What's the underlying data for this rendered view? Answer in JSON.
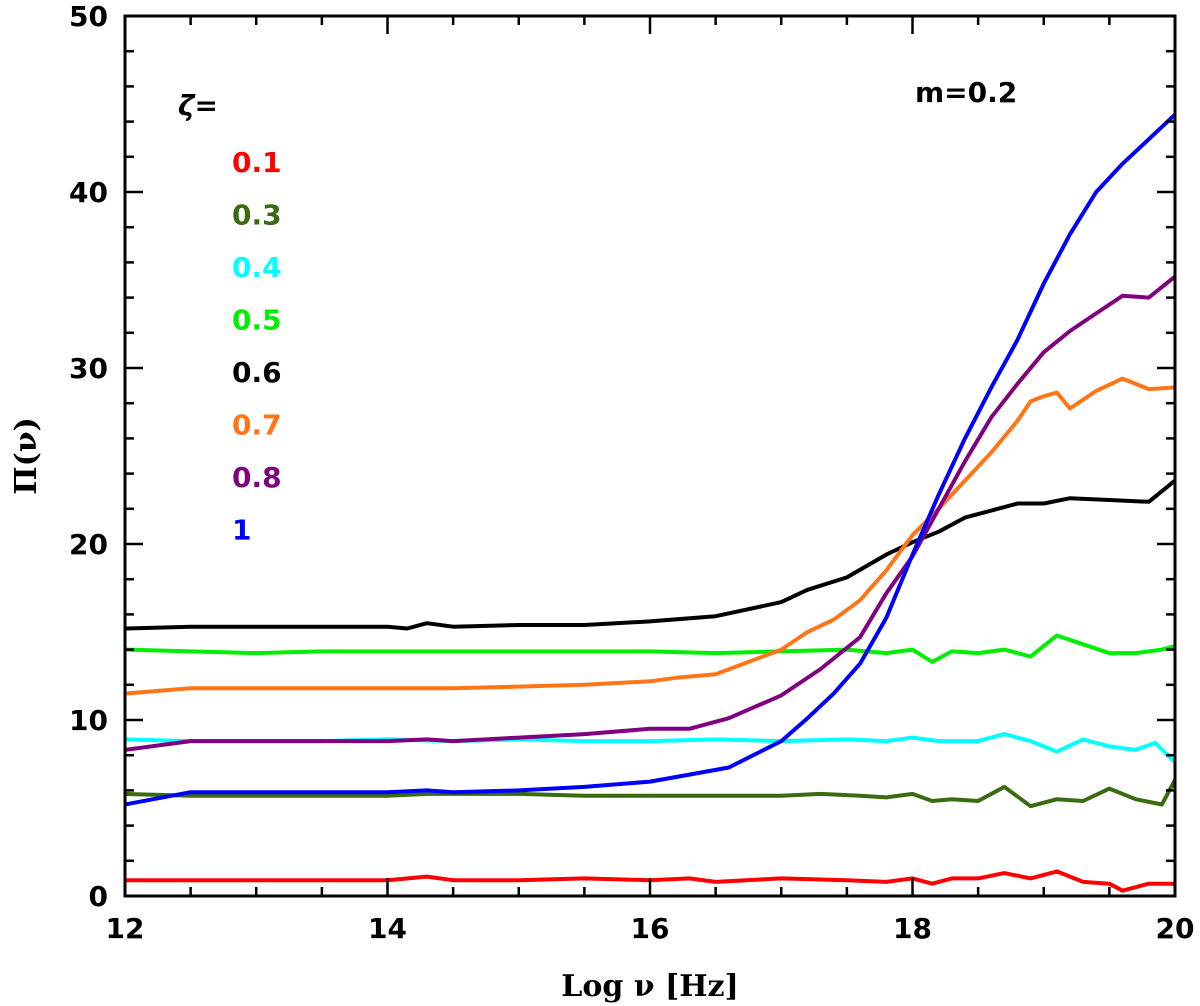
{
  "chart_data": {
    "type": "line",
    "xlabel": "Log ν [Hz]",
    "ylabel": "Π(ν)",
    "xlim": [
      12,
      20
    ],
    "ylim": [
      0,
      50
    ],
    "xticks": [
      12,
      14,
      16,
      18,
      20
    ],
    "yticks": [
      0,
      10,
      20,
      30,
      40,
      50
    ],
    "grid": false,
    "annotation": "m=0.2",
    "legend_title": "ζ=",
    "legend_position": "top-left",
    "series": [
      {
        "name": "0.1",
        "color": "#ff0000",
        "x": [
          12.0,
          12.5,
          13.0,
          13.5,
          14.0,
          14.3,
          14.5,
          15.0,
          15.5,
          16.0,
          16.3,
          16.5,
          17.0,
          17.5,
          17.8,
          18.0,
          18.15,
          18.3,
          18.5,
          18.7,
          18.9,
          19.1,
          19.3,
          19.5,
          19.6,
          19.8,
          20.0
        ],
        "y": [
          0.9,
          0.9,
          0.9,
          0.9,
          0.9,
          1.1,
          0.9,
          0.9,
          1.0,
          0.9,
          1.0,
          0.8,
          1.0,
          0.9,
          0.8,
          1.0,
          0.7,
          1.0,
          1.0,
          1.3,
          1.0,
          1.4,
          0.8,
          0.7,
          0.3,
          0.7,
          0.7
        ]
      },
      {
        "name": "0.3",
        "color": "#3a6b0f",
        "x": [
          12.0,
          12.5,
          13.0,
          13.5,
          14.0,
          14.3,
          14.5,
          15.0,
          15.5,
          16.0,
          16.5,
          17.0,
          17.3,
          17.6,
          17.8,
          18.0,
          18.15,
          18.3,
          18.5,
          18.7,
          18.9,
          19.1,
          19.3,
          19.5,
          19.7,
          19.9,
          20.0
        ],
        "y": [
          5.8,
          5.7,
          5.7,
          5.7,
          5.7,
          5.8,
          5.8,
          5.8,
          5.7,
          5.7,
          5.7,
          5.7,
          5.8,
          5.7,
          5.6,
          5.8,
          5.4,
          5.5,
          5.4,
          6.2,
          5.1,
          5.5,
          5.4,
          6.1,
          5.5,
          5.2,
          6.6
        ]
      },
      {
        "name": "0.4",
        "color": "#00ffff",
        "x": [
          12.0,
          12.5,
          13.0,
          13.5,
          14.0,
          14.5,
          15.0,
          15.5,
          16.0,
          16.5,
          17.0,
          17.5,
          17.8,
          18.0,
          18.2,
          18.5,
          18.7,
          18.9,
          19.1,
          19.3,
          19.5,
          19.7,
          19.85,
          20.0
        ],
        "y": [
          8.9,
          8.8,
          8.8,
          8.8,
          8.9,
          8.8,
          8.9,
          8.8,
          8.8,
          8.9,
          8.8,
          8.9,
          8.8,
          9.0,
          8.8,
          8.8,
          9.2,
          8.8,
          8.2,
          8.9,
          8.5,
          8.3,
          8.7,
          7.6
        ]
      },
      {
        "name": "0.5",
        "color": "#00ee00",
        "x": [
          12.0,
          12.5,
          13.0,
          13.5,
          14.0,
          14.5,
          15.0,
          15.5,
          16.0,
          16.5,
          17.0,
          17.5,
          17.8,
          18.0,
          18.15,
          18.3,
          18.5,
          18.7,
          18.9,
          19.1,
          19.3,
          19.5,
          19.7,
          19.9,
          20.0
        ],
        "y": [
          14.0,
          13.9,
          13.8,
          13.9,
          13.9,
          13.9,
          13.9,
          13.9,
          13.9,
          13.8,
          13.9,
          14.0,
          13.8,
          14.0,
          13.3,
          13.9,
          13.8,
          14.0,
          13.6,
          14.8,
          14.3,
          13.8,
          13.8,
          14.0,
          14.2
        ]
      },
      {
        "name": "0.6",
        "color": "#000000",
        "x": [
          12.0,
          12.5,
          13.0,
          13.5,
          14.0,
          14.15,
          14.3,
          14.5,
          15.0,
          15.5,
          16.0,
          16.5,
          17.0,
          17.2,
          17.5,
          17.8,
          18.0,
          18.2,
          18.4,
          18.6,
          18.8,
          19.0,
          19.2,
          19.5,
          19.8,
          20.0
        ],
        "y": [
          15.2,
          15.3,
          15.3,
          15.3,
          15.3,
          15.2,
          15.5,
          15.3,
          15.4,
          15.4,
          15.6,
          15.9,
          16.7,
          17.4,
          18.1,
          19.4,
          20.1,
          20.7,
          21.5,
          21.9,
          22.3,
          22.3,
          22.6,
          22.5,
          22.4,
          23.6
        ]
      },
      {
        "name": "0.7",
        "color": "#ff7518",
        "x": [
          12.0,
          12.5,
          13.0,
          13.5,
          14.0,
          14.5,
          15.0,
          15.5,
          16.0,
          16.2,
          16.5,
          17.0,
          17.2,
          17.4,
          17.6,
          17.8,
          18.0,
          18.2,
          18.4,
          18.6,
          18.8,
          18.9,
          19.0,
          19.1,
          19.2,
          19.4,
          19.6,
          19.8,
          20.0
        ],
        "y": [
          11.5,
          11.8,
          11.8,
          11.8,
          11.8,
          11.8,
          11.9,
          12.0,
          12.2,
          12.4,
          12.6,
          14.0,
          15.0,
          15.7,
          16.8,
          18.5,
          20.5,
          22.0,
          23.6,
          25.2,
          27.0,
          28.1,
          28.4,
          28.6,
          27.7,
          28.7,
          29.4,
          28.8,
          28.9
        ]
      },
      {
        "name": "0.8",
        "color": "#800080",
        "x": [
          12.0,
          12.5,
          13.0,
          13.5,
          14.0,
          14.3,
          14.5,
          15.0,
          15.5,
          16.0,
          16.3,
          16.6,
          17.0,
          17.3,
          17.6,
          17.8,
          18.0,
          18.2,
          18.4,
          18.6,
          18.8,
          19.0,
          19.2,
          19.4,
          19.6,
          19.8,
          20.0
        ],
        "y": [
          8.3,
          8.8,
          8.8,
          8.8,
          8.8,
          8.9,
          8.8,
          9.0,
          9.2,
          9.5,
          9.5,
          10.1,
          11.4,
          12.9,
          14.7,
          17.2,
          19.3,
          22.0,
          24.7,
          27.2,
          29.1,
          30.9,
          32.1,
          33.1,
          34.1,
          34.0,
          35.2
        ]
      },
      {
        "name": "1",
        "color": "#0000ff",
        "x": [
          12.0,
          12.5,
          13.0,
          13.5,
          14.0,
          14.3,
          14.5,
          15.0,
          15.5,
          16.0,
          16.3,
          16.6,
          17.0,
          17.2,
          17.4,
          17.6,
          17.8,
          18.0,
          18.2,
          18.4,
          18.6,
          18.8,
          19.0,
          19.2,
          19.4,
          19.6,
          19.8,
          20.0
        ],
        "y": [
          5.2,
          5.9,
          5.9,
          5.9,
          5.9,
          6.0,
          5.9,
          6.0,
          6.2,
          6.5,
          6.9,
          7.3,
          8.8,
          10.1,
          11.5,
          13.2,
          15.8,
          19.4,
          22.8,
          26.0,
          28.9,
          31.6,
          34.8,
          37.6,
          40.0,
          41.6,
          43.0,
          44.4
        ]
      }
    ]
  }
}
